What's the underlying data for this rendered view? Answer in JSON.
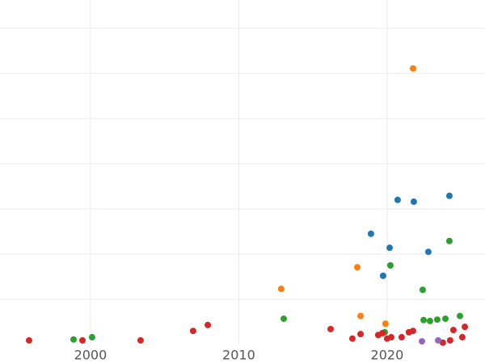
{
  "chart_data": {
    "type": "scatter",
    "xlim": [
      1993.9,
      2026.6
    ],
    "xticks": [
      2000,
      2010,
      2020
    ],
    "ylim": [
      0,
      7.625
    ],
    "ygrid": [
      1,
      2,
      3,
      4,
      5,
      6,
      7
    ],
    "grid": true,
    "series": [
      {
        "color": "#1f77b4",
        "x": [
          2020.71,
          2021.8,
          2024.2,
          2018.91,
          2020.17,
          2022.78,
          2019.73
        ],
        "values": [
          3.2,
          3.16,
          3.29,
          2.45,
          2.14,
          2.05,
          1.52
        ]
      },
      {
        "color": "#ff7f0e",
        "x": [
          2021.75,
          2017.99,
          2012.86,
          2018.21,
          2019.89
        ],
        "values": [
          6.11,
          1.71,
          1.23,
          0.63,
          0.46
        ]
      },
      {
        "color": "#2ca02c",
        "x": [
          2024.2,
          2020.22,
          2022.4,
          2013.03,
          2024.91,
          2022.46,
          2022.89,
          2023.38,
          2023.93,
          1998.86,
          2000.11,
          2019.84
        ],
        "values": [
          2.29,
          1.75,
          1.21,
          0.57,
          0.63,
          0.54,
          0.52,
          0.55,
          0.57,
          0.11,
          0.16,
          0.27
        ]
      },
      {
        "color": "#d62728",
        "x": [
          1995.86,
          1999.46,
          2003.38,
          2006.92,
          2007.91,
          2016.19,
          2017.66,
          2018.21,
          2019.4,
          2019.68,
          2020.0,
          2020.28,
          2020.98,
          2021.47,
          2021.75,
          2024.47,
          2025.24,
          2025.07,
          2024.25,
          2023.76
        ],
        "values": [
          0.09,
          0.09,
          0.09,
          0.3,
          0.43,
          0.34,
          0.13,
          0.23,
          0.21,
          0.25,
          0.13,
          0.16,
          0.16,
          0.27,
          0.3,
          0.32,
          0.39,
          0.16,
          0.09,
          0.04
        ]
      },
      {
        "color": "#9467bd",
        "x": [
          2022.35,
          2023.44
        ],
        "values": [
          0.07,
          0.09
        ]
      }
    ]
  }
}
